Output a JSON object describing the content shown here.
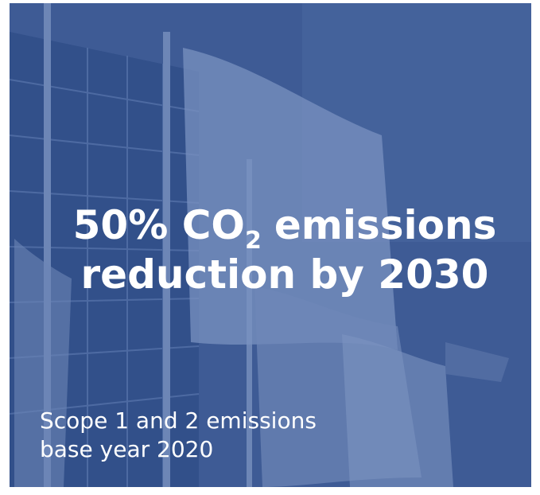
{
  "headline": {
    "line1": {
      "prefix": "50% CO",
      "subscript": "2",
      "suffix": "emissions"
    },
    "line2": "reduction by 2030"
  },
  "caption": {
    "line1": "Scope 1 and 2 emissions",
    "line2": "base year 2020"
  }
}
